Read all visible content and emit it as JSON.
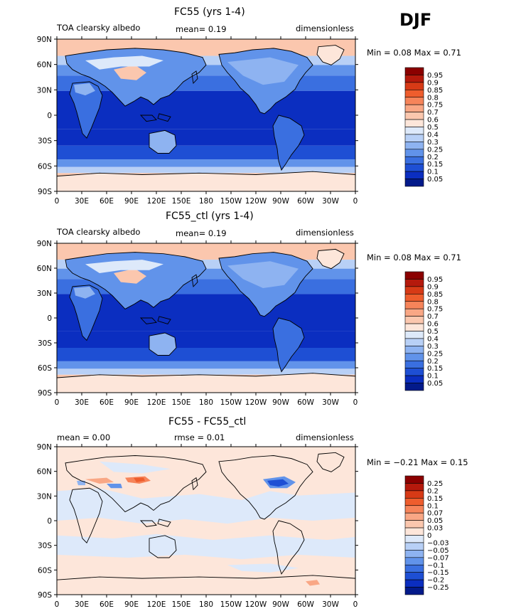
{
  "season": "DJF",
  "panels": [
    {
      "title": "FC55 (yrs 1-4)",
      "left_label": "TOA clearsky albedo",
      "center_label": "mean=   0.19",
      "right_label": "dimensionless",
      "stats": "Min =   0.08  Max =   0.71",
      "colorbar_levels": [
        "0.95",
        "0.9",
        "0.85",
        "0.8",
        "0.75",
        "0.7",
        "0.6",
        "0.5",
        "0.4",
        "0.3",
        "0.25",
        "0.2",
        "0.15",
        "0.1",
        "0.05"
      ],
      "colorbar_colors": [
        "#8b0000",
        "#b5190c",
        "#d73a16",
        "#ee5d2d",
        "#f6845a",
        "#f9a785",
        "#fbc7ae",
        "#fde6da",
        "#dde9fa",
        "#b8d0f6",
        "#8eb3f1",
        "#6193ea",
        "#3a6fe0",
        "#1e4fd4",
        "#0b2ec0",
        "#031a8a"
      ]
    },
    {
      "title": "FC55_ctl (yrs 1-4)",
      "left_label": "TOA clearsky albedo",
      "center_label": "mean=   0.19",
      "right_label": "dimensionless",
      "stats": "Min =   0.08  Max =   0.71",
      "colorbar_levels": [
        "0.95",
        "0.9",
        "0.85",
        "0.8",
        "0.75",
        "0.7",
        "0.6",
        "0.5",
        "0.4",
        "0.3",
        "0.25",
        "0.2",
        "0.15",
        "0.1",
        "0.05"
      ],
      "colorbar_colors": [
        "#8b0000",
        "#b5190c",
        "#d73a16",
        "#ee5d2d",
        "#f6845a",
        "#f9a785",
        "#fbc7ae",
        "#fde6da",
        "#dde9fa",
        "#b8d0f6",
        "#8eb3f1",
        "#6193ea",
        "#3a6fe0",
        "#1e4fd4",
        "#0b2ec0",
        "#031a8a"
      ]
    },
    {
      "title": "FC55 - FC55_ctl",
      "left_label": "mean =    0.00",
      "center_label": "rmse =    0.01",
      "right_label": "dimensionless",
      "stats": "Min =  −0.21  Max =    0.15",
      "colorbar_levels": [
        "0.25",
        "0.2",
        "0.15",
        "0.1",
        "0.07",
        "0.05",
        "0.03",
        "0",
        "−0.03",
        "−0.05",
        "−0.07",
        "−0.1",
        "−0.15",
        "−0.2",
        "−0.25"
      ],
      "colorbar_colors": [
        "#8b0000",
        "#b5190c",
        "#d73a16",
        "#ee5d2d",
        "#f6845a",
        "#f9a785",
        "#fbc7ae",
        "#fde6da",
        "#dde9fa",
        "#b8d0f6",
        "#8eb3f1",
        "#6193ea",
        "#3a6fe0",
        "#1e4fd4",
        "#0b2ec0",
        "#031a8a"
      ]
    }
  ],
  "lat_ticks": [
    "90N",
    "60N",
    "30N",
    "0",
    "30S",
    "60S",
    "90S"
  ],
  "lon_ticks": [
    "0",
    "30E",
    "60E",
    "90E",
    "120E",
    "150E",
    "180",
    "150W",
    "120W",
    "90W",
    "60W",
    "30W",
    "0"
  ]
}
